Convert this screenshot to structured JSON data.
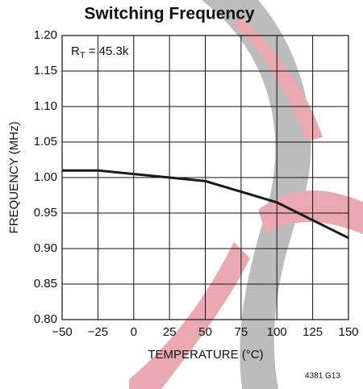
{
  "chart_data": {
    "type": "line",
    "title": "Switching Frequency",
    "x_label": "TEMPERATURE (°C)",
    "y_label": "FREQUENCY (MHz)",
    "annotation": [
      "R",
      "T",
      " = 45.3k"
    ],
    "figure_id": "4381 G13",
    "x": [
      -50,
      -25,
      0,
      25,
      50,
      75,
      100,
      125,
      150
    ],
    "series": [
      {
        "color": "#1a1a1a",
        "values": [
          1.01,
          1.01,
          1.005,
          1.0,
          0.995,
          0.98,
          0.965,
          0.94,
          0.915
        ]
      }
    ],
    "xlim": [
      -50,
      150
    ],
    "xticks": [
      {
        "value": -50,
        "label": "−50"
      },
      {
        "value": -25,
        "label": "−25"
      },
      0,
      25,
      50,
      75,
      100,
      125,
      150
    ],
    "ylim": [
      0.8,
      1.2
    ],
    "yticks": [
      {
        "value": 0.8,
        "label": "0.80"
      },
      0.85,
      {
        "value": 0.9,
        "label": "0.90"
      },
      0.95,
      {
        "value": 1.0,
        "label": "1.00"
      },
      1.05,
      {
        "value": 1.1,
        "label": "1.10"
      },
      1.15,
      {
        "value": 1.2,
        "label": "1.20"
      }
    ],
    "grid": true
  }
}
